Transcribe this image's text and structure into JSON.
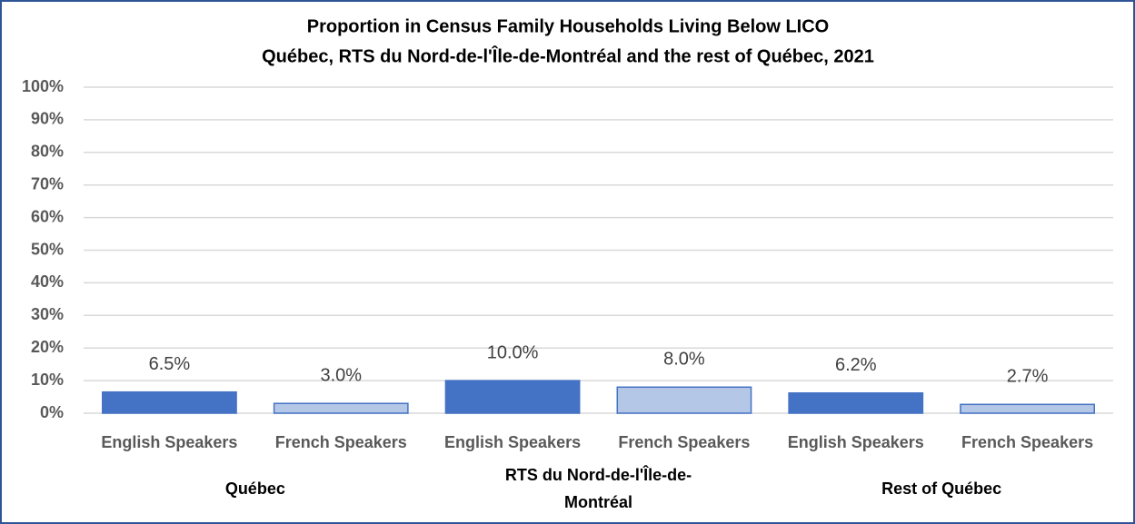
{
  "chart_data": {
    "type": "bar",
    "title": "Proportion in Census Family Households Living Below LICO",
    "subtitle": "Québec, RTS du Nord-de-l'Île-de-Montréal and the rest of Québec, 2021",
    "categories": [
      "English Speakers",
      "French Speakers",
      "English Speakers",
      "French Speakers",
      "English Speakers",
      "French Speakers"
    ],
    "groups": [
      "Québec",
      "RTS du Nord-de-l'Île-de-Montréal",
      "Rest of Québec"
    ],
    "values": [
      6.5,
      3.0,
      10.0,
      8.0,
      6.2,
      2.7
    ],
    "value_labels": [
      "6.5%",
      "3.0%",
      "10.0%",
      "8.0%",
      "6.2%",
      "2.7%"
    ],
    "colors": [
      "#4472c4",
      "#b4c7e7",
      "#4472c4",
      "#b4c7e7",
      "#4472c4",
      "#b4c7e7"
    ],
    "ylim": [
      0,
      100
    ],
    "yticks": [
      {
        "value": 0,
        "label": "0%"
      },
      {
        "value": 10,
        "label": "10%"
      },
      {
        "value": 20,
        "label": "20%"
      },
      {
        "value": 30,
        "label": "30%"
      },
      {
        "value": 40,
        "label": "40%"
      },
      {
        "value": 50,
        "label": "50%"
      },
      {
        "value": 60,
        "label": "60%"
      },
      {
        "value": 70,
        "label": "70%"
      },
      {
        "value": 80,
        "label": "80%"
      },
      {
        "value": 90,
        "label": "90%"
      },
      {
        "value": 100,
        "label": "100%"
      }
    ],
    "grid": true
  }
}
